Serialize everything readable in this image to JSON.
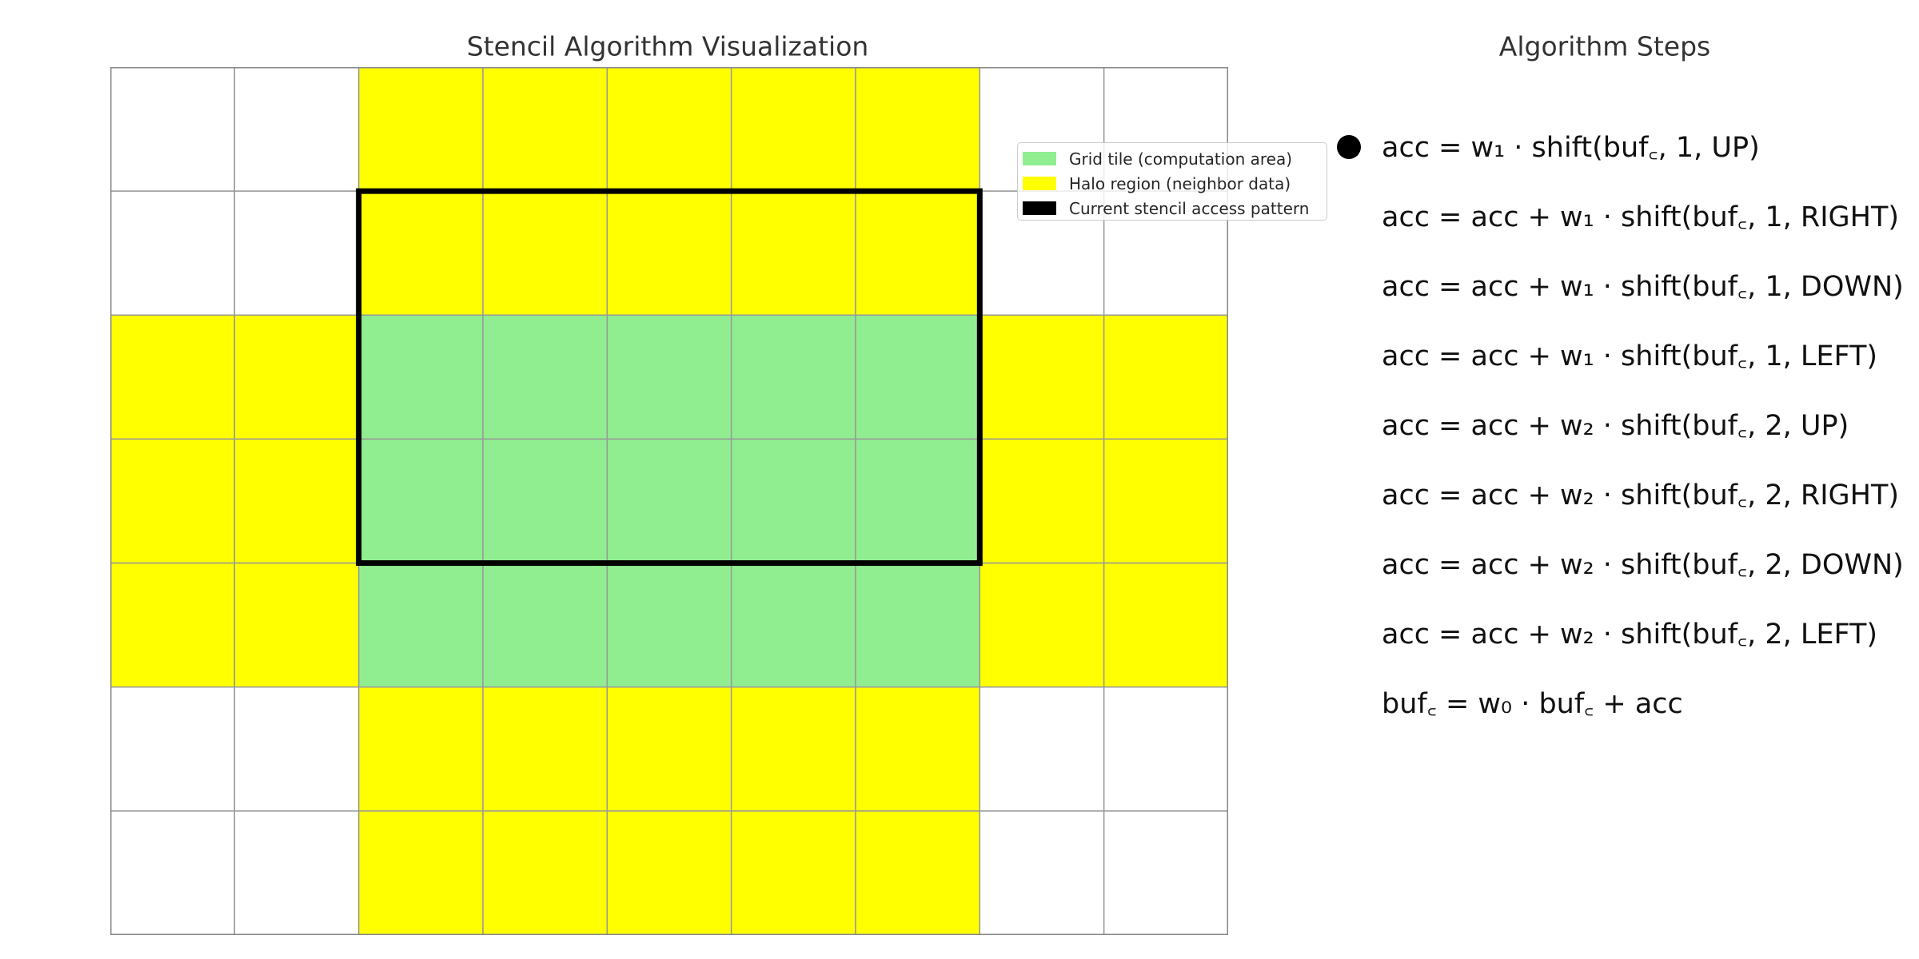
{
  "left_title": "Stencil Algorithm Visualization",
  "right_title": "Algorithm Steps",
  "colors": {
    "tile": "#90EE90",
    "halo": "#FFFF00",
    "empty": "#FFFFFF",
    "grid_line": "#999999",
    "stencil_box": "#000000"
  },
  "grid": {
    "rows": 7,
    "cols": 9,
    "cells": [
      [
        "empty",
        "empty",
        "halo",
        "halo",
        "halo",
        "halo",
        "halo",
        "empty",
        "empty"
      ],
      [
        "empty",
        "empty",
        "halo",
        "halo",
        "halo",
        "halo",
        "halo",
        "empty",
        "empty"
      ],
      [
        "halo",
        "halo",
        "tile",
        "tile",
        "tile",
        "tile",
        "tile",
        "halo",
        "halo"
      ],
      [
        "halo",
        "halo",
        "tile",
        "tile",
        "tile",
        "tile",
        "tile",
        "halo",
        "halo"
      ],
      [
        "halo",
        "halo",
        "tile",
        "tile",
        "tile",
        "tile",
        "tile",
        "halo",
        "halo"
      ],
      [
        "empty",
        "empty",
        "halo",
        "halo",
        "halo",
        "halo",
        "halo",
        "empty",
        "empty"
      ],
      [
        "empty",
        "empty",
        "halo",
        "halo",
        "halo",
        "halo",
        "halo",
        "empty",
        "empty"
      ]
    ],
    "stencil": {
      "row_start": 1,
      "row_end": 3,
      "col_start": 2,
      "col_end": 6
    }
  },
  "legend": [
    {
      "label": "Grid tile (computation area)",
      "color": "#90EE90"
    },
    {
      "label": "Halo region (neighbor data)",
      "color": "#FFFF00"
    },
    {
      "label": "Current stencil access pattern",
      "color": "#000000"
    }
  ],
  "steps": [
    {
      "text": "acc = w₁ · shift(buf꜀, 1, UP)",
      "active": true
    },
    {
      "text": "acc = acc + w₁ · shift(buf꜀, 1, RIGHT)",
      "active": false
    },
    {
      "text": "acc = acc + w₁ · shift(buf꜀, 1, DOWN)",
      "active": false
    },
    {
      "text": "acc = acc + w₁ · shift(buf꜀, 1, LEFT)",
      "active": false
    },
    {
      "text": "acc = acc + w₂ · shift(buf꜀, 2, UP)",
      "active": false
    },
    {
      "text": "acc = acc + w₂ · shift(buf꜀, 2, RIGHT)",
      "active": false
    },
    {
      "text": "acc = acc + w₂ · shift(buf꜀, 2, DOWN)",
      "active": false
    },
    {
      "text": "acc = acc + w₂ · shift(buf꜀, 2, LEFT)",
      "active": false
    },
    {
      "text": "buf꜀ = w₀ · buf꜀ + acc",
      "active": false
    }
  ]
}
